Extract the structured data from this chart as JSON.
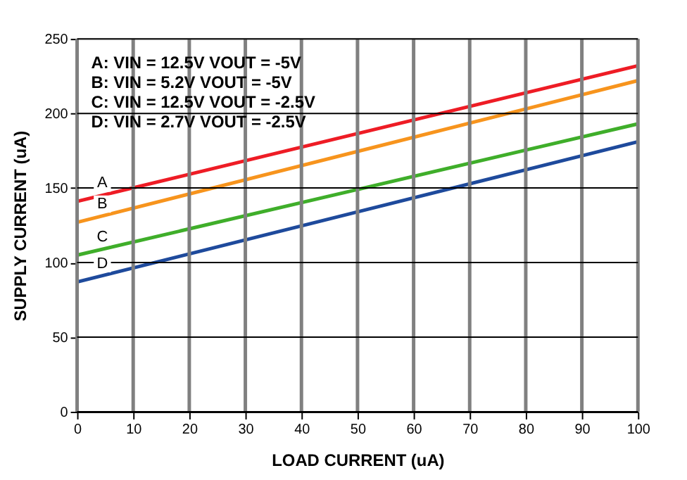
{
  "chart_data": {
    "type": "line",
    "xlabel": "LOAD CURRENT (uA)",
    "ylabel": "SUPPLY CURRENT (uA)",
    "x": [
      0,
      100
    ],
    "series": [
      {
        "name": "A",
        "color": "#ee1c25",
        "values": [
          141,
          232
        ]
      },
      {
        "name": "B",
        "color": "#f7941d",
        "values": [
          127,
          222
        ]
      },
      {
        "name": "C",
        "color": "#3fae2a",
        "values": [
          105,
          193
        ]
      },
      {
        "name": "D",
        "color": "#1e4a9c",
        "values": [
          87,
          181
        ]
      }
    ],
    "xlim": [
      0,
      100
    ],
    "xticks": [
      0,
      10,
      20,
      30,
      40,
      50,
      60,
      70,
      80,
      90,
      100
    ],
    "ylim": [
      0,
      250
    ],
    "yticks": [
      0,
      50,
      100,
      150,
      200,
      250
    ],
    "grid": true,
    "legend": false,
    "marker": "none",
    "line_style": "solid",
    "annotations": [
      "A: VIN = 12.5V   VOUT = -5V",
      "B: VIN = 5.2V    VOUT = -5V",
      "C: VIN = 12.5V   VOUT = -2.5V",
      "D: VIN = 2.7V    VOUT = -2.5V"
    ]
  }
}
